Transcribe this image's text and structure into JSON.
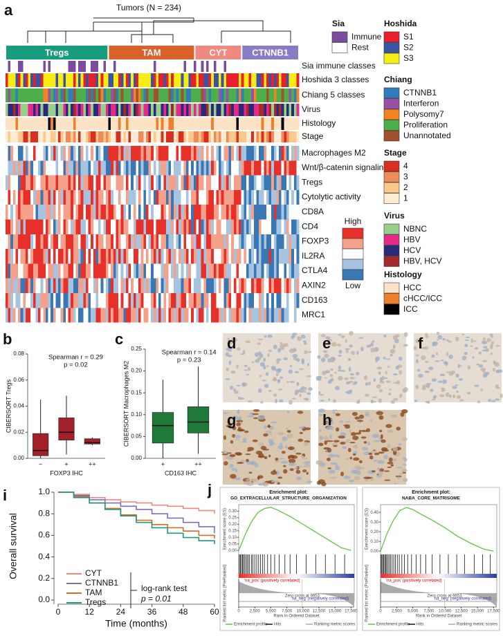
{
  "heatmap": {
    "label": "a",
    "title": "Tumors (N = 234)",
    "groups": [
      {
        "name": "Tregs",
        "color": "#179c7d"
      },
      {
        "name": "TAM",
        "color": "#d9622b"
      },
      {
        "name": "CYT",
        "color": "#f08a80"
      },
      {
        "name": "CTNNB1",
        "color": "#8a7cc4"
      }
    ],
    "rows": [
      "Sia immune classes",
      "Hoshida 3 classes",
      "Chiang 5 classes",
      "Virus",
      "Histology",
      "Stage",
      "Macrophages M2",
      "Wnt/β-catenin signaling",
      "Tregs",
      "Cytolytic activity",
      "CD8A",
      "CD4",
      "FOXP3",
      "IL2RA",
      "CTLA4",
      "AXIN2",
      "CD163",
      "MRC1"
    ],
    "scale": {
      "high": "High",
      "low": "Low",
      "colors": [
        "#e8302a",
        "#f4a08a",
        "#ffffff",
        "#a6c4e0",
        "#3a78b5"
      ]
    },
    "legends": [
      {
        "title": "Sia",
        "items": [
          {
            "label": "Immune",
            "color": "#7d4c9e"
          },
          {
            "label": "Rest",
            "color": "#ffffff"
          }
        ]
      },
      {
        "title": "Hoshida",
        "items": [
          {
            "label": "S1",
            "color": "#e8202a"
          },
          {
            "label": "S2",
            "color": "#3a54a4"
          },
          {
            "label": "S3",
            "color": "#f7ec13"
          }
        ]
      },
      {
        "title": "Chiang",
        "items": [
          {
            "label": "CTNNB1",
            "color": "#2f7ebc"
          },
          {
            "label": "Interferon",
            "color": "#9a4fa8"
          },
          {
            "label": "Polysomy7",
            "color": "#f58220"
          },
          {
            "label": "Proliferation",
            "color": "#4daf4a"
          },
          {
            "label": "Unannotated",
            "color": "#a0522d"
          }
        ]
      },
      {
        "title": "Stage",
        "items": [
          {
            "label": "4",
            "color": "#d7301f"
          },
          {
            "label": "3",
            "color": "#f08a5a"
          },
          {
            "label": "2",
            "color": "#fdc98a"
          },
          {
            "label": "1",
            "color": "#fdebd3"
          }
        ]
      },
      {
        "title": "Virus",
        "items": [
          {
            "label": "NBNC",
            "color": "#98d08a"
          },
          {
            "label": "HBV",
            "color": "#e7298a"
          },
          {
            "label": "HCV",
            "color": "#2a2a7a"
          },
          {
            "label": "HBV, HCV",
            "color": "#a52a2a"
          }
        ]
      },
      {
        "title": "Histology",
        "items": [
          {
            "label": "HCC",
            "color": "#fde3c5"
          },
          {
            "label": "cHCC/ICC",
            "color": "#f07f2a"
          },
          {
            "label": "ICC",
            "color": "#000000"
          }
        ]
      }
    ]
  },
  "images": {
    "labels": [
      "d",
      "e",
      "f",
      "g",
      "h"
    ]
  },
  "chart_data": [
    {
      "type": "box",
      "label": "b",
      "ylabel": "CIBERSORT Tregs",
      "xlabel": "FOXP3 IHC",
      "color": "#a31f2a",
      "annotations": [
        "Spearman r = 0.29",
        "p = 0.02"
      ],
      "categories": [
        "−",
        "+",
        "++"
      ],
      "boxes": [
        {
          "low": 0,
          "q1": 0.002,
          "median": 0.006,
          "q3": 0.019,
          "high": 0.045
        },
        {
          "low": 0.003,
          "q1": 0.014,
          "median": 0.02,
          "q3": 0.031,
          "high": 0.048
        },
        {
          "low": 0.01,
          "q1": 0.011,
          "median": 0.012,
          "q3": 0.015,
          "high": 0.016
        }
      ],
      "ylim": [
        0,
        0.08
      ],
      "yticks": [
        {
          "value": 0,
          "label": "0.00"
        },
        {
          "value": 0.02,
          "label": "0.02"
        },
        {
          "value": 0.04,
          "label": "0.04"
        },
        {
          "value": 0.06,
          "label": "0.06"
        },
        {
          "value": 0.08,
          "label": "0.08"
        }
      ]
    },
    {
      "type": "box",
      "label": "c",
      "ylabel": "CIBERSORT Macrophages M2",
      "xlabel": "CD163 IHC",
      "color": "#1f7a3a",
      "annotations": [
        "Spearman r = 0.14",
        "p = 0.23"
      ],
      "categories": [
        "+",
        "++"
      ],
      "boxes": [
        {
          "low": 0,
          "q1": 0.035,
          "median": 0.075,
          "q3": 0.105,
          "high": 0.18
        },
        {
          "low": 0.01,
          "q1": 0.058,
          "median": 0.083,
          "q3": 0.118,
          "high": 0.21
        }
      ],
      "ylim": [
        0,
        0.25
      ],
      "yticks": [
        {
          "value": 0,
          "label": "0.00"
        },
        {
          "value": 0.05,
          "label": "0.05"
        },
        {
          "value": 0.1,
          "label": "0.10"
        },
        {
          "value": 0.15,
          "label": "0.15"
        },
        {
          "value": 0.2,
          "label": "0.20"
        },
        {
          "value": 0.25,
          "label": "0.25"
        }
      ]
    },
    {
      "type": "step",
      "label": "i",
      "ylabel": "Overall survival",
      "xlabel": "Time (months)",
      "annotations": [
        "log-rank test",
        "p = 0.01"
      ],
      "x": [
        0,
        6,
        12,
        18,
        24,
        30,
        36,
        42,
        48,
        54,
        60
      ],
      "series": [
        {
          "name": "CYT",
          "color": "#f4857a",
          "values": [
            1,
            0.98,
            0.95,
            0.93,
            0.91,
            0.9,
            0.88,
            0.87,
            0.85,
            0.83,
            0.8
          ]
        },
        {
          "name": "CTNNB1",
          "color": "#7b6cc4",
          "values": [
            1,
            0.97,
            0.93,
            0.9,
            0.87,
            0.84,
            0.8,
            0.76,
            0.72,
            0.68,
            0.62
          ]
        },
        {
          "name": "TAM",
          "color": "#e0672a",
          "values": [
            1,
            0.96,
            0.9,
            0.85,
            0.79,
            0.74,
            0.7,
            0.67,
            0.64,
            0.6,
            0.57
          ]
        },
        {
          "name": "Tregs",
          "color": "#179c7d",
          "values": [
            1,
            0.95,
            0.9,
            0.84,
            0.78,
            0.72,
            0.67,
            0.62,
            0.58,
            0.55,
            0.52
          ]
        }
      ],
      "xlim": [
        0,
        60
      ],
      "xticks": [
        0,
        12,
        24,
        36,
        48,
        60
      ],
      "ylim": [
        0,
        1
      ],
      "yticks": [
        {
          "value": 0,
          "label": "0.0"
        },
        {
          "value": 0.2,
          "label": "0.2"
        },
        {
          "value": 0.4,
          "label": "0.4"
        },
        {
          "value": 0.6,
          "label": "0.6"
        },
        {
          "value": 0.8,
          "label": "0.8"
        },
        {
          "value": 1,
          "label": "1.0"
        }
      ]
    },
    {
      "type": "enrichment",
      "label": "j",
      "title": "Enrichment plot:",
      "subtitle": "GO_EXTRACELLULAR_STRUCTURE_ORGANIZATION",
      "ylabel": "Enrichment score (ES)",
      "ylabel2": "Ranked list metric (PreRanked)",
      "xlabel": "Rank in Ordered Dataset",
      "pos_label": "'na_pos' (positively correlated)",
      "neg_label": "'na_neg' (negatively correlated)",
      "zero_label": "Zero cross at 9653",
      "legend": [
        "Enrichment profile",
        "Hits",
        "Ranking metric scores"
      ],
      "color": "#5fc53a",
      "x": [
        0,
        1000,
        2000,
        3000,
        4000,
        5000,
        6000,
        8000,
        10000,
        12000,
        14000,
        16000,
        17500
      ],
      "values": [
        0,
        0.12,
        0.22,
        0.29,
        0.32,
        0.33,
        0.31,
        0.26,
        0.2,
        0.14,
        0.08,
        0.02,
        0
      ],
      "hits": [
        100,
        250,
        400,
        600,
        700,
        900,
        1100,
        1300,
        1500,
        1700,
        2000,
        2200,
        2500,
        2800,
        3100,
        3400,
        3700,
        4000,
        4500,
        5000,
        5600,
        6300,
        7200,
        8000,
        9000,
        10500,
        12000,
        13500,
        15000,
        16500
      ],
      "xlim": [
        0,
        18000
      ],
      "ylim": [
        -0.02,
        0.35
      ],
      "xticks": [
        {
          "value": 0,
          "label": "0"
        },
        {
          "value": 2500,
          "label": "2,500"
        },
        {
          "value": 5000,
          "label": "5,000"
        },
        {
          "value": 7500,
          "label": "7,500"
        },
        {
          "value": 10000,
          "label": "10,000"
        },
        {
          "value": 12500,
          "label": "12,500"
        },
        {
          "value": 15000,
          "label": "15,000"
        },
        {
          "value": 17500,
          "label": "17,500"
        }
      ],
      "yticks": [
        {
          "value": 0,
          "label": "0.00"
        },
        {
          "value": 0.05,
          "label": "0.05"
        },
        {
          "value": 0.1,
          "label": "0.10"
        },
        {
          "value": 0.15,
          "label": "0.15"
        },
        {
          "value": 0.2,
          "label": "0.20"
        },
        {
          "value": 0.25,
          "label": "0.25"
        },
        {
          "value": 0.3,
          "label": "0.30"
        }
      ]
    },
    {
      "type": "enrichment",
      "title": "Enrichment plot:",
      "subtitle": "NABA_CORE_MATRISOME",
      "ylabel": "Enrichment score (ES)",
      "ylabel2": "Ranked list metric (PreRanked)",
      "xlabel": "Rank in Ordered Dataset",
      "pos_label": "'na_pos' (positively correlated)",
      "neg_label": "'na_neg' (negatively correlated)",
      "zero_label": "Zero cross at 9653",
      "legend": [
        "Enrichment profile",
        "Hits",
        "Ranking metric scores"
      ],
      "color": "#5fc53a",
      "x": [
        0,
        1000,
        2000,
        3000,
        4000,
        5000,
        6000,
        8000,
        10000,
        12000,
        14000,
        16000,
        17500
      ],
      "values": [
        0,
        0.18,
        0.32,
        0.42,
        0.45,
        0.43,
        0.39,
        0.32,
        0.24,
        0.15,
        0.08,
        0.02,
        0
      ],
      "hits": [
        80,
        200,
        350,
        500,
        650,
        800,
        950,
        1150,
        1350,
        1550,
        1800,
        2050,
        2300,
        2600,
        2900,
        3300,
        3700,
        4200,
        4800,
        5500,
        6200,
        7000,
        8000,
        9200,
        10500,
        11800,
        13000,
        14500,
        15800,
        17000
      ],
      "xlim": [
        0,
        18000
      ],
      "ylim": [
        -0.02,
        0.48
      ],
      "xticks": [
        {
          "value": 0,
          "label": "0"
        },
        {
          "value": 2500,
          "label": "2,500"
        },
        {
          "value": 5000,
          "label": "5,000"
        },
        {
          "value": 7500,
          "label": "7,500"
        },
        {
          "value": 10000,
          "label": "10,000"
        },
        {
          "value": 12500,
          "label": "12,500"
        },
        {
          "value": 15000,
          "label": "15,000"
        },
        {
          "value": 17500,
          "label": "17,500"
        }
      ],
      "yticks": [
        {
          "value": 0,
          "label": "0.00"
        },
        {
          "value": 0.1,
          "label": "0.10"
        },
        {
          "value": 0.2,
          "label": "0.20"
        },
        {
          "value": 0.3,
          "label": "0.30"
        },
        {
          "value": 0.4,
          "label": "0.40"
        }
      ]
    }
  ]
}
